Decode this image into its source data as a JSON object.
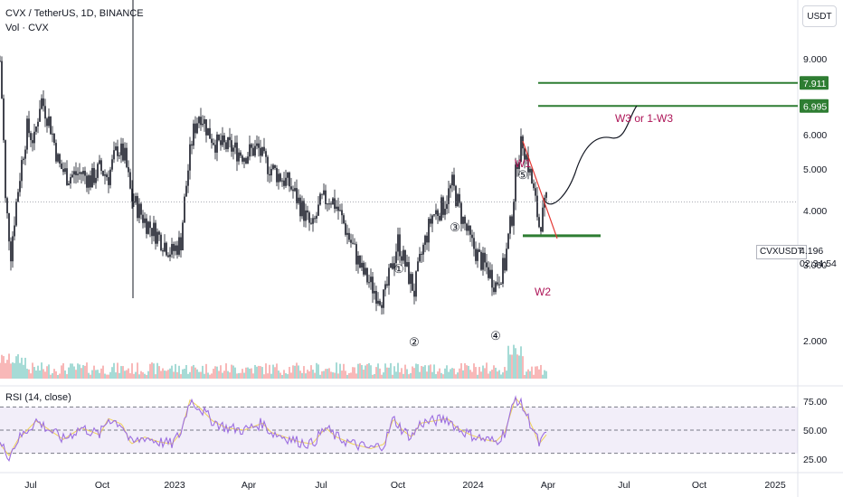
{
  "header": {
    "title": "CVX / TetherUS, 1D, BINANCE",
    "volume_label": "Vol · CVX"
  },
  "price_axis_unit": "USDT",
  "rsi_label": "RSI (14, close)",
  "symbol_tag": "CVXUSDT",
  "last_price": "4.196",
  "countdown": "02:34:54",
  "chart_data": {
    "type": "candlestick",
    "x_ticks": [
      "Jul",
      "Oct",
      "2023",
      "Apr",
      "Jul",
      "Oct",
      "2024",
      "Apr",
      "Jul",
      "Oct",
      "2025"
    ],
    "y_ticks": [
      "2.000",
      "3.000",
      "4.000",
      "5.000",
      "6.000",
      "7.911",
      "9.000"
    ],
    "rsi_ticks": [
      "25.00",
      "50.00",
      "75.00"
    ],
    "rsi_levels": [
      30,
      50,
      70
    ],
    "target_levels": [
      {
        "value": 7.911,
        "label": "7.911",
        "color": "#2e7d32"
      },
      {
        "value": 6.995,
        "label": "6.995",
        "color": "#2e7d32"
      }
    ],
    "support_level": {
      "value": 3.5,
      "color": "#2e7d32"
    },
    "wave_labels": [
      "①",
      "②",
      "③",
      "④",
      "⑤"
    ],
    "annotations": [
      "W1",
      "W2",
      "W3 or 1-W3"
    ],
    "colors": {
      "up": "#26a69a",
      "down": "#ef5350",
      "candle": "#131722",
      "rsi": "#9c6ee0",
      "rsi_ma": "#f0d35a",
      "projection": "#131722",
      "downtrend": "#e53935"
    },
    "price_anchors": [
      [
        0,
        8.9
      ],
      [
        6,
        4.2
      ],
      [
        12,
        3.2
      ],
      [
        20,
        4.5
      ],
      [
        30,
        6.2
      ],
      [
        38,
        5.8
      ],
      [
        45,
        7.3
      ],
      [
        55,
        6.4
      ],
      [
        65,
        5.1
      ],
      [
        75,
        4.8
      ],
      [
        90,
        4.9
      ],
      [
        100,
        4.7
      ],
      [
        110,
        5.0
      ],
      [
        120,
        4.8
      ],
      [
        130,
        5.6
      ],
      [
        138,
        5.3
      ],
      [
        145,
        4.3
      ],
      [
        160,
        3.8
      ],
      [
        175,
        3.5
      ],
      [
        190,
        3.2
      ],
      [
        200,
        3.4
      ],
      [
        206,
        4.6
      ],
      [
        213,
        6.0
      ],
      [
        221,
        6.8
      ],
      [
        230,
        6.1
      ],
      [
        240,
        5.7
      ],
      [
        255,
        5.6
      ],
      [
        270,
        5.4
      ],
      [
        285,
        5.6
      ],
      [
        292,
        5.2
      ],
      [
        305,
        4.9
      ],
      [
        320,
        4.6
      ],
      [
        335,
        4.0
      ],
      [
        345,
        3.6
      ],
      [
        355,
        4.2
      ],
      [
        365,
        4.3
      ],
      [
        372,
        4.1
      ],
      [
        385,
        3.5
      ],
      [
        400,
        2.9
      ],
      [
        415,
        2.6
      ],
      [
        425,
        2.5
      ],
      [
        432,
        2.9
      ],
      [
        440,
        3.4
      ],
      [
        450,
        2.9
      ],
      [
        458,
        2.6
      ],
      [
        465,
        3.1
      ],
      [
        478,
        3.9
      ],
      [
        490,
        4.1
      ],
      [
        500,
        4.6
      ],
      [
        510,
        3.9
      ],
      [
        520,
        3.4
      ],
      [
        530,
        3.1
      ],
      [
        540,
        2.9
      ],
      [
        548,
        2.7
      ],
      [
        558,
        3.0
      ],
      [
        566,
        3.9
      ],
      [
        572,
        5.3
      ],
      [
        578,
        5.8
      ],
      [
        584,
        5.1
      ],
      [
        590,
        4.4
      ],
      [
        596,
        3.7
      ],
      [
        600,
        3.9
      ],
      [
        604,
        4.2
      ]
    ],
    "rsi_anchors": [
      [
        0,
        38
      ],
      [
        10,
        28
      ],
      [
        20,
        42
      ],
      [
        40,
        58
      ],
      [
        55,
        50
      ],
      [
        70,
        42
      ],
      [
        90,
        52
      ],
      [
        110,
        46
      ],
      [
        120,
        60
      ],
      [
        135,
        55
      ],
      [
        145,
        38
      ],
      [
        160,
        44
      ],
      [
        175,
        40
      ],
      [
        190,
        38
      ],
      [
        200,
        48
      ],
      [
        210,
        76
      ],
      [
        220,
        70
      ],
      [
        235,
        58
      ],
      [
        250,
        52
      ],
      [
        270,
        50
      ],
      [
        290,
        56
      ],
      [
        300,
        48
      ],
      [
        315,
        44
      ],
      [
        330,
        40
      ],
      [
        345,
        38
      ],
      [
        360,
        52
      ],
      [
        372,
        44
      ],
      [
        390,
        38
      ],
      [
        410,
        34
      ],
      [
        425,
        38
      ],
      [
        435,
        60
      ],
      [
        445,
        50
      ],
      [
        455,
        44
      ],
      [
        465,
        56
      ],
      [
        480,
        58
      ],
      [
        495,
        60
      ],
      [
        505,
        52
      ],
      [
        520,
        46
      ],
      [
        535,
        42
      ],
      [
        548,
        40
      ],
      [
        558,
        48
      ],
      [
        570,
        78
      ],
      [
        578,
        70
      ],
      [
        590,
        50
      ],
      [
        596,
        38
      ],
      [
        604,
        46
      ]
    ]
  }
}
